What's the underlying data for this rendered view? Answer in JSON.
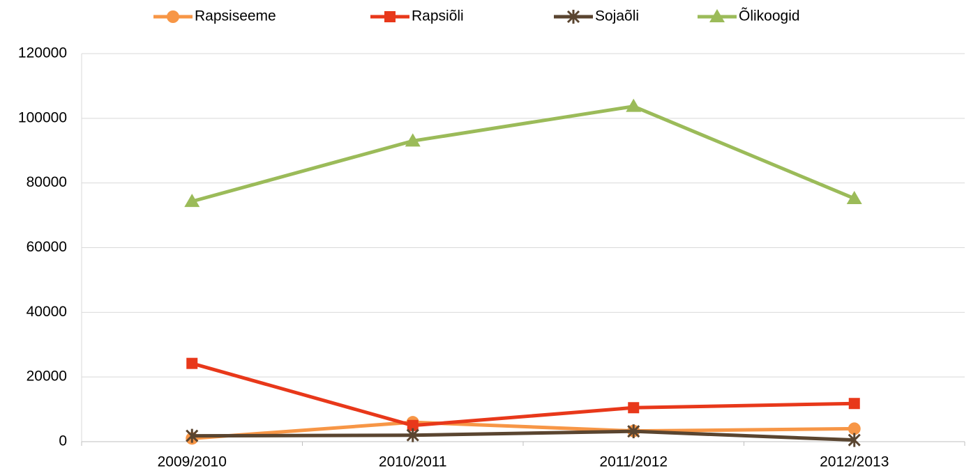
{
  "chart_data": {
    "type": "line",
    "categories": [
      "2009/2010",
      "2010/2011",
      "2011/2012",
      "2012/2013"
    ],
    "series": [
      {
        "name": "Rapsiseeme",
        "color": "#f79646",
        "marker": "circle",
        "values": [
          1000,
          6000,
          3300,
          4000
        ]
      },
      {
        "name": "Rapsiõli",
        "color": "#e8381a",
        "marker": "square",
        "values": [
          24200,
          5000,
          10500,
          11800
        ]
      },
      {
        "name": "Sojaõli",
        "color": "#5a4530",
        "marker": "asterisk",
        "values": [
          1800,
          2000,
          3200,
          500
        ]
      },
      {
        "name": "Õlikoogid",
        "color": "#9bbb59",
        "marker": "triangle",
        "values": [
          74300,
          93000,
          103700,
          75200
        ]
      }
    ],
    "ylim": [
      0,
      120000
    ],
    "yticks": [
      0,
      20000,
      40000,
      60000,
      80000,
      100000,
      120000
    ],
    "grid": true,
    "legend": "top"
  }
}
